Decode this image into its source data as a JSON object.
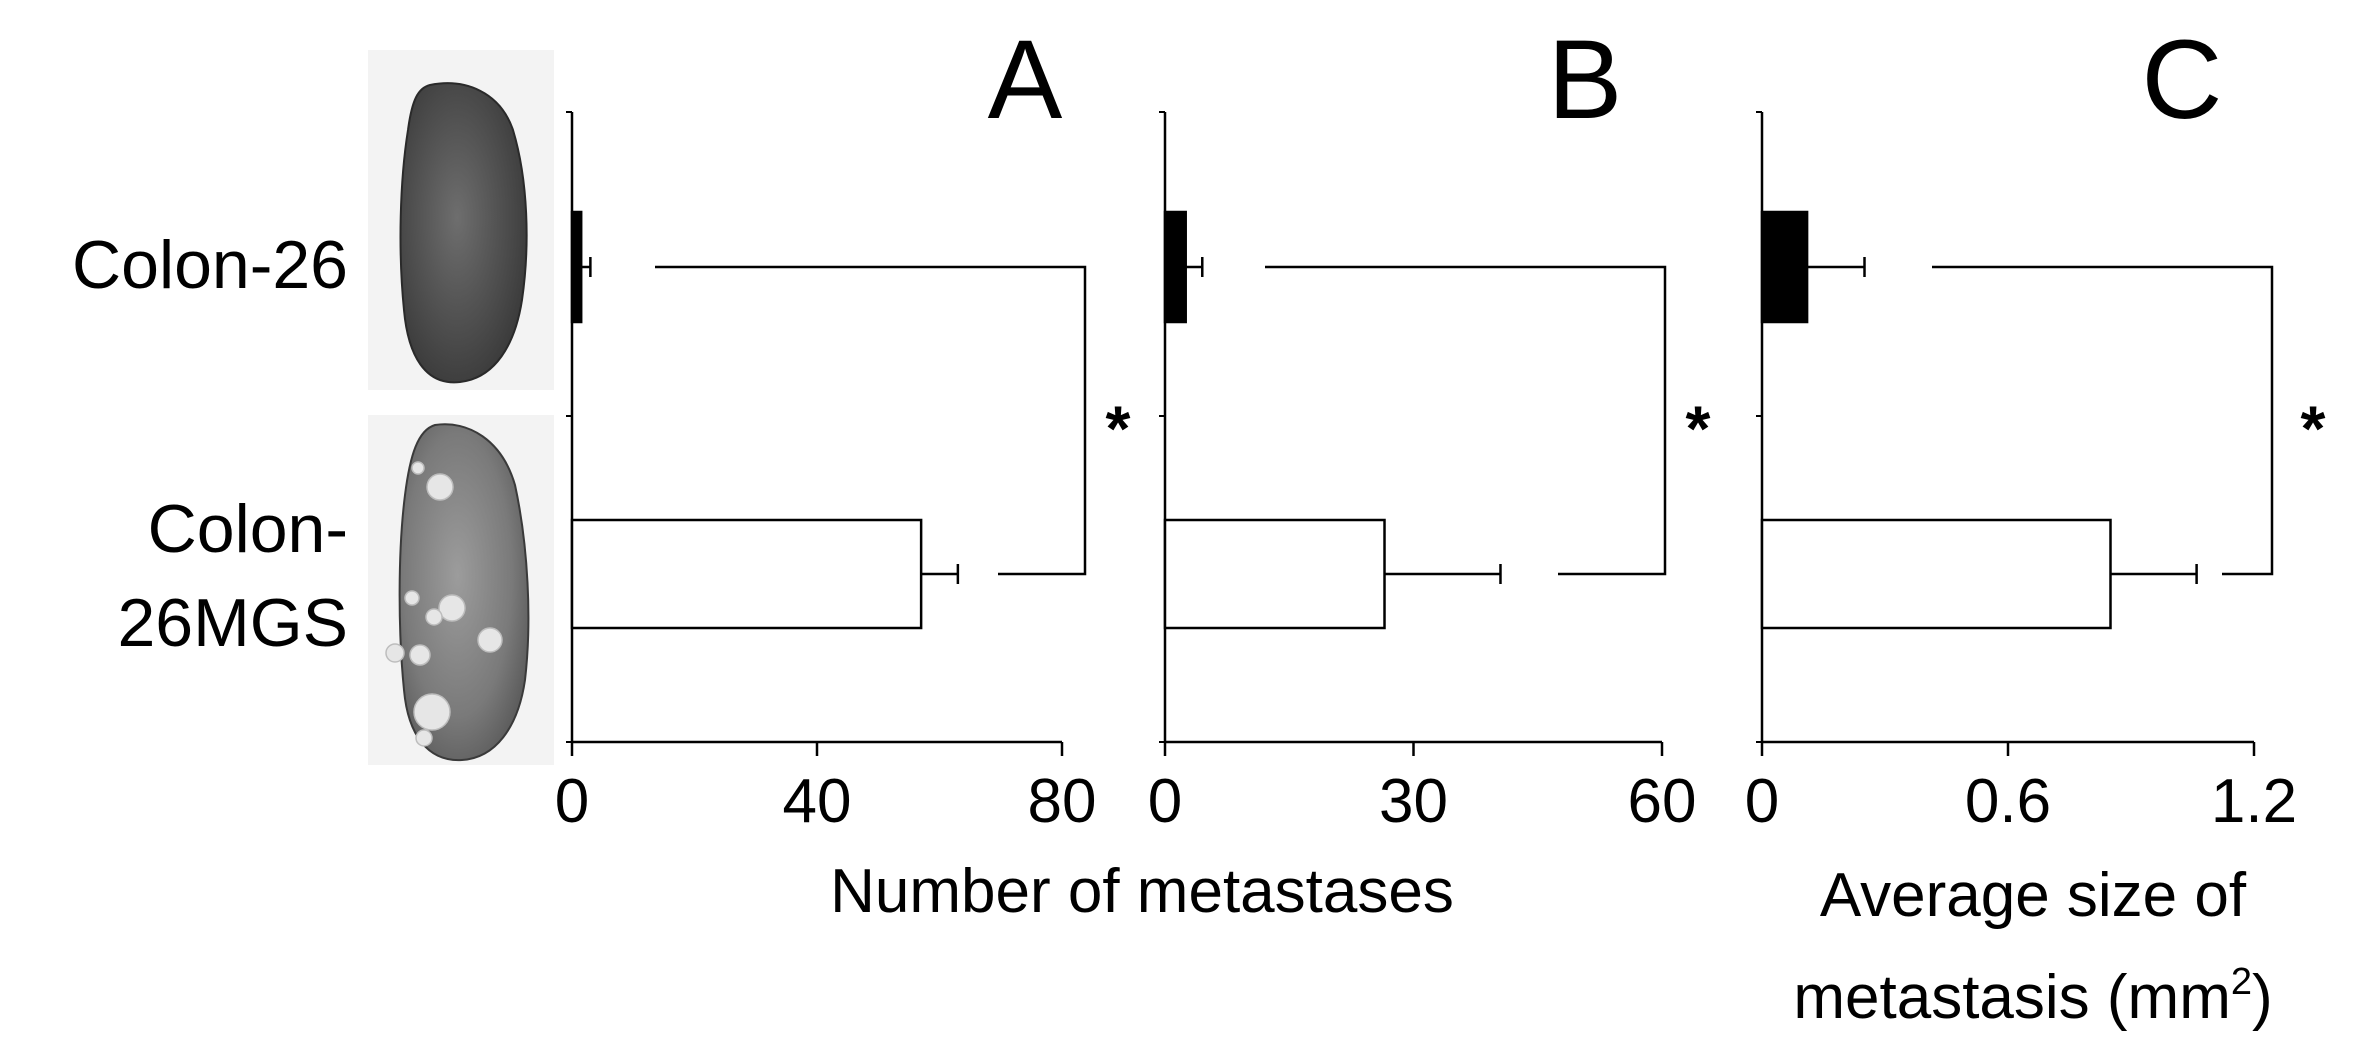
{
  "figure": {
    "row_labels": [
      [
        "Colon-26"
      ],
      [
        "Colon-",
        "26MGS"
      ]
    ],
    "significance_mark": "*",
    "shared_xlabel": "Number of metastases",
    "panel_c_xlabel_lines": [
      "Average size of",
      "metastasis (mm",
      "2",
      ")"
    ],
    "images": [
      {
        "name": "colon-26-liver-image",
        "spots": []
      },
      {
        "name": "colon-26mgs-liver-image",
        "spots": [
          "metastatic nodules"
        ]
      }
    ],
    "colors": {
      "colon26_bar": "#000000",
      "colon26mgs_bar": "#ffffff",
      "bar_stroke": "#000000"
    }
  },
  "chart_data": [
    {
      "type": "bar",
      "orientation": "horizontal",
      "panel": "A",
      "categories": [
        "Colon-26",
        "Colon-26MGS"
      ],
      "values": [
        1.5,
        57
      ],
      "errors": [
        1.5,
        6
      ],
      "xlim": [
        0,
        80
      ],
      "xticks": [
        0,
        40,
        80
      ],
      "xlabel": "Number of metastases",
      "significance": "*"
    },
    {
      "type": "bar",
      "orientation": "horizontal",
      "panel": "B",
      "categories": [
        "Colon-26",
        "Colon-26MGS"
      ],
      "values": [
        2.5,
        26.5
      ],
      "errors": [
        2,
        14
      ],
      "xlim": [
        0,
        60
      ],
      "xticks": [
        0,
        30,
        60
      ],
      "xlabel": "Number of metastases",
      "significance": "*"
    },
    {
      "type": "bar",
      "orientation": "horizontal",
      "panel": "C",
      "categories": [
        "Colon-26",
        "Colon-26MGS"
      ],
      "values": [
        0.11,
        0.85
      ],
      "errors": [
        0.14,
        0.21
      ],
      "xlim": [
        0,
        1.2
      ],
      "xticks": [
        0,
        0.6,
        1.2
      ],
      "xlabel": "Average size of metastasis (mm2)",
      "significance": "*"
    }
  ]
}
